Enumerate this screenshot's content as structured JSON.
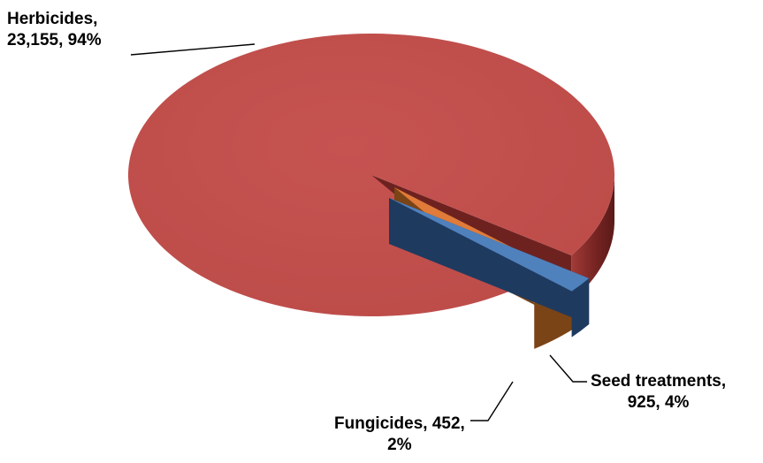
{
  "chart_data": {
    "type": "pie",
    "style": "3d",
    "categories": [
      "Herbicides",
      "Seed treatments",
      "Fungicides"
    ],
    "values": [
      23155,
      925,
      452
    ],
    "percent_labels": [
      "94%",
      "4%",
      "2%"
    ],
    "colors": [
      "#C0504D",
      "#E07B39",
      "#4F81BD"
    ],
    "side_colors": [
      "#7A2624",
      "#7A4416",
      "#1F3A5F"
    ],
    "exploded": [
      "Seed treatments",
      "Fungicides"
    ],
    "data_labels": [
      {
        "series": "Herbicides",
        "line1": "Herbicides,",
        "line2": "23,155, 94%"
      },
      {
        "series": "Seed treatments",
        "line1": "Seed treatments,",
        "line2": "925, 4%"
      },
      {
        "series": "Fungicides",
        "line1": "Fungicides,  452,",
        "line2": "2%"
      }
    ]
  }
}
